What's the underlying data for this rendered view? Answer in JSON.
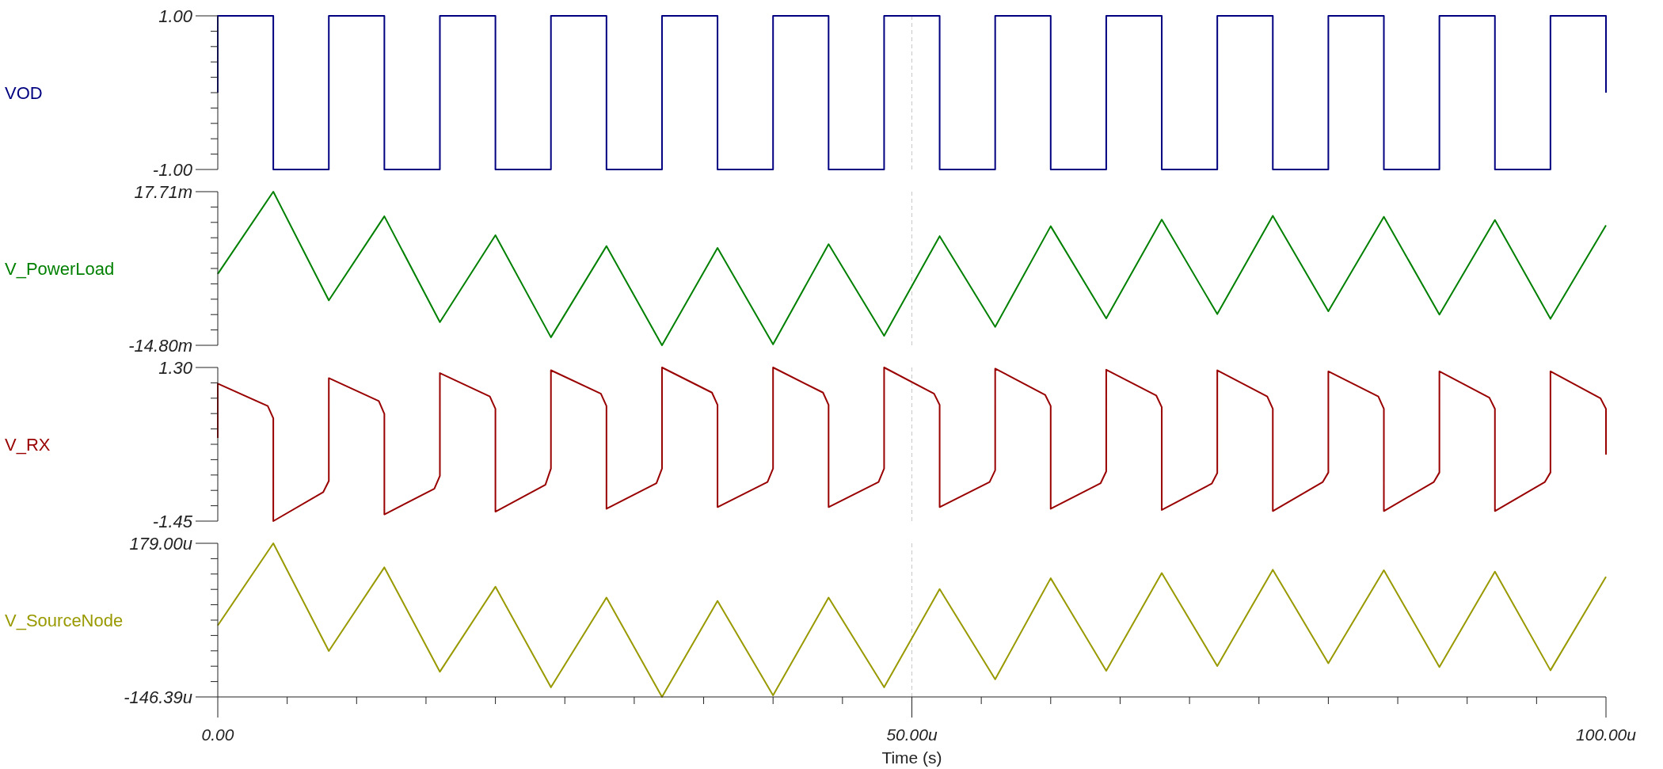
{
  "chart_data": [
    {
      "type": "step",
      "x": [
        0,
        0,
        4,
        8,
        12,
        16,
        20,
        24,
        28,
        32,
        36,
        40,
        44,
        48,
        52,
        56,
        60,
        64,
        68,
        72,
        76,
        80,
        84,
        88,
        92,
        96,
        100
      ],
      "series": [
        {
          "name": "VOD",
          "color": "#000080",
          "values": [
            0,
            1,
            -1,
            1,
            -1,
            1,
            -1,
            1,
            -1,
            1,
            -1,
            1,
            -1,
            1,
            -1,
            1,
            -1,
            1,
            -1,
            1,
            -1,
            1,
            -1,
            1,
            -1,
            1,
            0
          ]
        }
      ],
      "xlim": [
        0,
        100
      ],
      "ylim": [
        -1,
        1
      ],
      "yticks": [
        {
          "value": 1,
          "label": "1.00"
        },
        {
          "value": 0.8,
          "label": null
        },
        {
          "value": 0.6,
          "label": null
        },
        {
          "value": 0.4,
          "label": null
        },
        {
          "value": 0.2,
          "label": null
        },
        {
          "value": 0,
          "label": null
        },
        {
          "value": -0.2,
          "label": null
        },
        {
          "value": -0.4,
          "label": null
        },
        {
          "value": -0.6,
          "label": null
        },
        {
          "value": -0.8,
          "label": null
        },
        {
          "value": -1,
          "label": "-1.00"
        }
      ],
      "ref_lines": [
        {
          "axis": "x",
          "value": 50,
          "color": "#c8c8c8",
          "line_style": "dashed"
        }
      ],
      "tick_labels": "y"
    },
    {
      "type": "line",
      "x": [
        0,
        4,
        8,
        12,
        16,
        20,
        24,
        28,
        32,
        36,
        40,
        44,
        48,
        52,
        56,
        60,
        64,
        68,
        72,
        76,
        80,
        84,
        88,
        92,
        96,
        100
      ],
      "series": [
        {
          "name": "V_PowerLoad",
          "color": "#008000",
          "values": [
            0.3,
            17.71,
            -5.3,
            12.5,
            -9.9,
            8.5,
            -13.1,
            6.2,
            -14.8,
            5.8,
            -14.6,
            6.6,
            -12.8,
            8.3,
            -10.9,
            10.4,
            -9.1,
            11.8,
            -8.2,
            12.6,
            -7.6,
            12.4,
            -8.3,
            11.7,
            -9.2,
            10.6
          ]
        }
      ],
      "xlim": [
        0,
        100
      ],
      "ylim": [
        -14.8,
        17.71
      ],
      "yticks": [
        {
          "value": 17.71,
          "label": "17.71m"
        },
        {
          "value": 14.459,
          "label": null
        },
        {
          "value": 11.208,
          "label": null
        },
        {
          "value": 7.957,
          "label": null
        },
        {
          "value": 4.706,
          "label": null
        },
        {
          "value": 1.455,
          "label": null
        },
        {
          "value": -1.796,
          "label": null
        },
        {
          "value": -5.047,
          "label": null
        },
        {
          "value": -8.298,
          "label": null
        },
        {
          "value": -11.549,
          "label": null
        },
        {
          "value": -14.8,
          "label": "-14.80m"
        }
      ],
      "ref_lines": [
        {
          "axis": "x",
          "value": 50,
          "color": "#c8c8c8",
          "line_style": "dashed"
        }
      ],
      "tick_labels": "y"
    },
    {
      "type": "line",
      "x": [
        0,
        0,
        3.6,
        4,
        4,
        7.6,
        8,
        8,
        11.6,
        12,
        12,
        15.6,
        16,
        16,
        19.6,
        20,
        20,
        23.6,
        24,
        24,
        27.6,
        28,
        28,
        31.6,
        32,
        32,
        35.6,
        36,
        36,
        39.6,
        40,
        40,
        43.6,
        44,
        44,
        47.6,
        48,
        48,
        51.6,
        52,
        52,
        55.6,
        56,
        56,
        59.6,
        60,
        60,
        63.6,
        64,
        64,
        67.6,
        68,
        68,
        71.6,
        72,
        72,
        75.6,
        76,
        76,
        79.6,
        80,
        80,
        83.6,
        84,
        84,
        87.6,
        88,
        88,
        91.6,
        92,
        92,
        95.6,
        96,
        96,
        99.6,
        100,
        100
      ],
      "series": [
        {
          "name": "V_RX",
          "color": "#990000",
          "values": [
            0.04,
            1.01,
            0.61,
            0.39,
            -1.45,
            -0.93,
            -0.73,
            1.11,
            0.7,
            0.47,
            -1.33,
            -0.87,
            -0.64,
            1.2,
            0.78,
            0.56,
            -1.28,
            -0.8,
            -0.51,
            1.25,
            0.83,
            0.61,
            -1.23,
            -0.77,
            -0.51,
            1.3,
            0.85,
            0.63,
            -1.2,
            -0.75,
            -0.51,
            1.3,
            0.85,
            0.63,
            -1.2,
            -0.75,
            -0.51,
            1.3,
            0.83,
            0.63,
            -1.2,
            -0.75,
            -0.54,
            1.28,
            0.81,
            0.61,
            -1.23,
            -0.77,
            -0.56,
            1.26,
            0.8,
            0.59,
            -1.25,
            -0.78,
            -0.59,
            1.25,
            0.78,
            0.56,
            -1.27,
            -0.75,
            -0.58,
            1.23,
            0.78,
            0.56,
            -1.27,
            -0.75,
            -0.58,
            1.23,
            0.76,
            0.56,
            -1.27,
            -0.75,
            -0.58,
            1.23,
            0.75,
            0.56,
            -0.26
          ]
        }
      ],
      "xlim": [
        0,
        100
      ],
      "ylim": [
        -1.45,
        1.3
      ],
      "yticks": [
        {
          "value": 1.3,
          "label": "1.30"
        },
        {
          "value": 1.025,
          "label": null
        },
        {
          "value": 0.75,
          "label": null
        },
        {
          "value": 0.475,
          "label": null
        },
        {
          "value": 0.2,
          "label": null
        },
        {
          "value": -0.075,
          "label": null
        },
        {
          "value": -0.35,
          "label": null
        },
        {
          "value": -0.625,
          "label": null
        },
        {
          "value": -0.9,
          "label": null
        },
        {
          "value": -1.175,
          "label": null
        },
        {
          "value": -1.45,
          "label": "-1.45"
        }
      ],
      "ref_lines": [
        {
          "axis": "x",
          "value": 50,
          "color": "#c8c8c8",
          "line_style": "dashed"
        }
      ],
      "tick_labels": "y"
    },
    {
      "type": "line",
      "x": [
        0,
        4,
        8,
        12,
        16,
        20,
        24,
        28,
        32,
        36,
        40,
        44,
        48,
        52,
        56,
        60,
        64,
        68,
        72,
        76,
        80,
        84,
        88,
        92,
        96,
        100
      ],
      "series": [
        {
          "name": "V_SourceNode",
          "color": "#999900",
          "values": [
            5,
            179,
            -49,
            128,
            -93,
            87,
            -126,
            64,
            -146.39,
            57,
            -143,
            64,
            -126,
            82,
            -109,
            105,
            -91,
            116,
            -81,
            123,
            -75,
            122,
            -83,
            119,
            -90,
            108
          ]
        }
      ],
      "xlim": [
        0,
        100
      ],
      "ylim": [
        -146.39,
        179
      ],
      "yticks": [
        {
          "value": 179,
          "label": "179.00u"
        },
        {
          "value": 146.461,
          "label": null
        },
        {
          "value": 113.922,
          "label": null
        },
        {
          "value": 81.383,
          "label": null
        },
        {
          "value": 48.844,
          "label": null
        },
        {
          "value": 16.305,
          "label": null
        },
        {
          "value": -16.234,
          "label": null
        },
        {
          "value": -48.773,
          "label": null
        },
        {
          "value": -81.312,
          "label": null
        },
        {
          "value": -113.851,
          "label": null
        },
        {
          "value": -146.39,
          "label": "-146.39u"
        }
      ],
      "xticks": [
        {
          "value": 0,
          "label": "0.00"
        },
        {
          "value": 5,
          "label": null
        },
        {
          "value": 10,
          "label": null
        },
        {
          "value": 15,
          "label": null
        },
        {
          "value": 20,
          "label": null
        },
        {
          "value": 25,
          "label": null
        },
        {
          "value": 30,
          "label": null
        },
        {
          "value": 35,
          "label": null
        },
        {
          "value": 40,
          "label": null
        },
        {
          "value": 45,
          "label": null
        },
        {
          "value": 50,
          "label": "50.00u"
        },
        {
          "value": 55,
          "label": null
        },
        {
          "value": 60,
          "label": null
        },
        {
          "value": 65,
          "label": null
        },
        {
          "value": 70,
          "label": null
        },
        {
          "value": 75,
          "label": null
        },
        {
          "value": 80,
          "label": null
        },
        {
          "value": 85,
          "label": null
        },
        {
          "value": 90,
          "label": null
        },
        {
          "value": 95,
          "label": null
        },
        {
          "value": 100,
          "label": "100.00u"
        }
      ],
      "xlabel": "Time (s)",
      "ref_lines": [
        {
          "axis": "x",
          "value": 50,
          "color": "#c8c8c8",
          "line_style": "dashed"
        }
      ]
    }
  ]
}
